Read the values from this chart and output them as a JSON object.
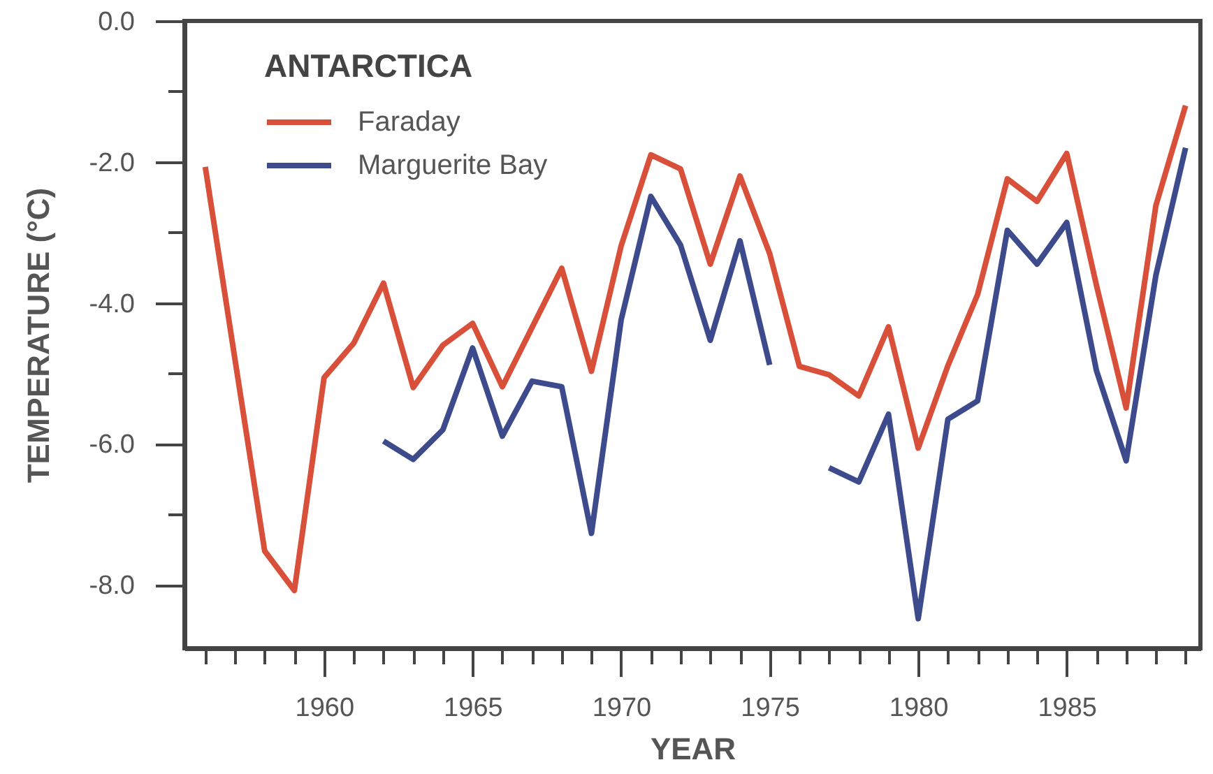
{
  "chart_data": {
    "type": "line",
    "xlabel": "YEAR",
    "ylabel": "TEMPERATURE (°C)",
    "legend_title": "ANTARCTICA",
    "legend": "top left",
    "grid": false,
    "line_style": "solid",
    "x": [
      1956,
      1957,
      1958,
      1959,
      1960,
      1961,
      1962,
      1963,
      1964,
      1965,
      1966,
      1967,
      1968,
      1969,
      1970,
      1971,
      1972,
      1973,
      1974,
      1975,
      1976,
      1977,
      1978,
      1979,
      1980,
      1981,
      1982,
      1983,
      1984,
      1985,
      1986,
      1987,
      1988,
      1989
    ],
    "xlim": [
      1955.3,
      1989.5
    ],
    "ylim": [
      -8.9,
      0
    ],
    "xticks": [
      {
        "value": 1956,
        "label": null
      },
      {
        "value": 1957,
        "label": null
      },
      {
        "value": 1958,
        "label": null
      },
      {
        "value": 1959,
        "label": null
      },
      1960,
      {
        "value": 1961,
        "label": null
      },
      {
        "value": 1962,
        "label": null
      },
      {
        "value": 1963,
        "label": null
      },
      {
        "value": 1964,
        "label": null
      },
      1965,
      {
        "value": 1966,
        "label": null
      },
      {
        "value": 1967,
        "label": null
      },
      {
        "value": 1968,
        "label": null
      },
      {
        "value": 1969,
        "label": null
      },
      1970,
      {
        "value": 1971,
        "label": null
      },
      {
        "value": 1972,
        "label": null
      },
      {
        "value": 1973,
        "label": null
      },
      {
        "value": 1974,
        "label": null
      },
      1975,
      {
        "value": 1976,
        "label": null
      },
      {
        "value": 1977,
        "label": null
      },
      {
        "value": 1978,
        "label": null
      },
      {
        "value": 1979,
        "label": null
      },
      1980,
      {
        "value": 1981,
        "label": null
      },
      {
        "value": 1982,
        "label": null
      },
      {
        "value": 1983,
        "label": null
      },
      {
        "value": 1984,
        "label": null
      },
      1985,
      {
        "value": 1986,
        "label": null
      },
      {
        "value": 1987,
        "label": null
      },
      {
        "value": 1988,
        "label": null
      },
      {
        "value": 1989,
        "label": null
      }
    ],
    "yticks": [
      {
        "value": 0,
        "label": "0.0"
      },
      {
        "value": -1,
        "label": null
      },
      {
        "value": -2,
        "label": "-2.0"
      },
      {
        "value": -3,
        "label": null
      },
      {
        "value": -4,
        "label": "-4.0"
      },
      {
        "value": -5,
        "label": null
      },
      {
        "value": -6,
        "label": "-6.0"
      },
      {
        "value": -7,
        "label": null
      },
      {
        "value": -8,
        "label": "-8.0"
      }
    ],
    "series": [
      {
        "name": "Faraday",
        "color": "#d9503a",
        "values": [
          -2.07,
          -4.8,
          -7.52,
          -8.08,
          -5.06,
          -4.57,
          -3.72,
          -5.2,
          -4.6,
          -4.29,
          -5.19,
          -4.35,
          -3.51,
          -4.97,
          -3.19,
          -1.9,
          -2.1,
          -3.45,
          -2.2,
          -3.3,
          -4.9,
          -5.02,
          -5.32,
          -4.34,
          -6.06,
          -4.89,
          -3.88,
          -2.24,
          -2.56,
          -1.88,
          -3.75,
          -5.49,
          -2.62,
          -1.2
        ]
      },
      {
        "name": "Marguerite Bay",
        "color": "#3d4a8c",
        "values": [
          null,
          null,
          null,
          null,
          null,
          null,
          -5.96,
          -6.22,
          -5.8,
          -4.64,
          -5.89,
          -5.11,
          -5.19,
          -7.27,
          -4.24,
          -2.49,
          -3.18,
          -4.53,
          -3.12,
          -4.88,
          null,
          -6.34,
          -6.54,
          -5.58,
          -8.48,
          -5.65,
          -5.39,
          -2.97,
          -3.45,
          -2.86,
          -4.96,
          -6.24,
          -3.61,
          -1.8
        ]
      }
    ]
  }
}
